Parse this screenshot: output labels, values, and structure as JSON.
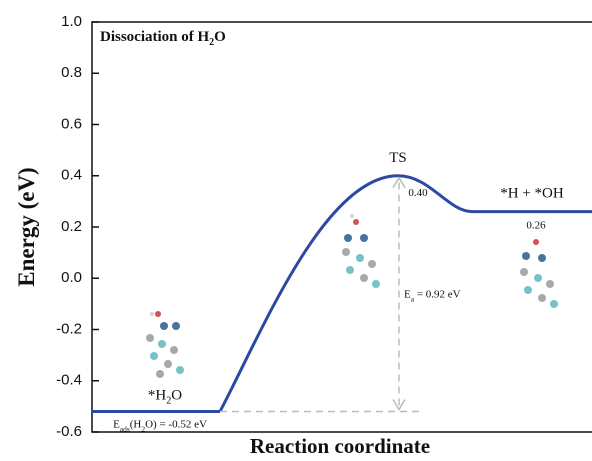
{
  "chart_data": {
    "type": "energy_profile",
    "title": {
      "main": "Dissociation of H",
      "sub": "2",
      "rest": "O"
    },
    "xlabel": "Reaction coordinate",
    "ylabel": "Energy (eV)",
    "ylim": [
      -0.6,
      1.0
    ],
    "yticks": [
      {
        "value": -0.6,
        "label": "-0.6"
      },
      -0.4,
      -0.2,
      {
        "value": 0,
        "label": "0.0"
      },
      0.2,
      0.4,
      0.6,
      0.8,
      {
        "value": 1.0,
        "label": "1.0"
      }
    ],
    "series": [
      {
        "color": "#2c4aa3",
        "states": [
          {
            "main": "*H",
            "sub": "2",
            "rest": "O"
          },
          {
            "main": "TS"
          },
          {
            "main": "*H + *OH"
          }
        ],
        "values": [
          -0.52,
          0.4,
          0.26
        ],
        "value_labels": [
          null,
          "0.40",
          "0.26"
        ]
      }
    ],
    "annotations": {
      "adsorption": {
        "main": "E",
        "sub": "ads",
        "mid": "(H",
        "sub2": "2",
        "rest": "O) = -0.52 eV"
      },
      "barrier": {
        "main": "E",
        "sub": "a",
        "rest": " = 0.92 eV"
      }
    }
  }
}
